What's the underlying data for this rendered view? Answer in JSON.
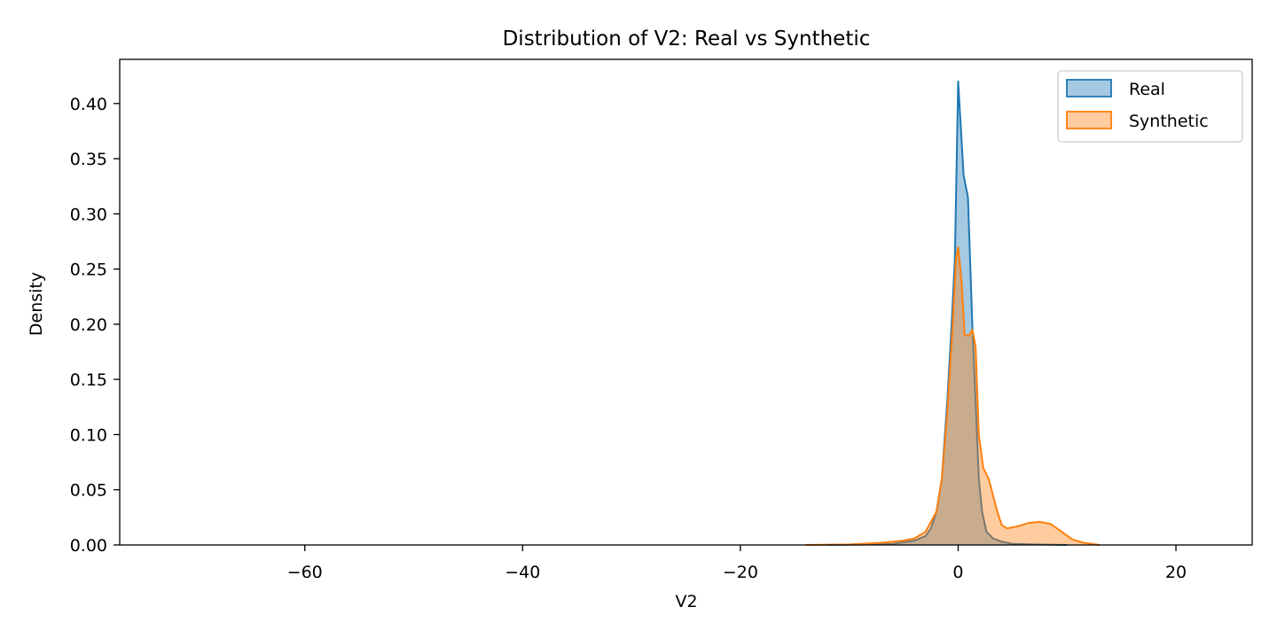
{
  "chart_data": {
    "type": "area",
    "title": "Distribution of V2: Real vs Synthetic",
    "xlabel": "V2",
    "ylabel": "Density",
    "xlim": [
      -77,
      27
    ],
    "ylim": [
      0,
      0.44
    ],
    "xticks": [
      -60,
      -40,
      -20,
      0,
      20
    ],
    "xtick_labels": [
      "−60",
      "−40",
      "−20",
      "0",
      "20"
    ],
    "yticks": [
      0.0,
      0.05,
      0.1,
      0.15,
      0.2,
      0.25,
      0.3,
      0.35,
      0.4
    ],
    "ytick_labels": [
      "0.00",
      "0.05",
      "0.10",
      "0.15",
      "0.20",
      "0.25",
      "0.30",
      "0.35",
      "0.40"
    ],
    "grid": false,
    "legend_position": "top-right",
    "series": [
      {
        "name": "Real",
        "color": "#1f77b4",
        "points": [
          [
            -12,
            0
          ],
          [
            -8,
            0.0005
          ],
          [
            -6,
            0.001
          ],
          [
            -4,
            0.004
          ],
          [
            -3,
            0.008
          ],
          [
            -2.5,
            0.015
          ],
          [
            -2,
            0.03
          ],
          [
            -1.5,
            0.06
          ],
          [
            -1,
            0.13
          ],
          [
            -0.6,
            0.2
          ],
          [
            -0.3,
            0.26
          ],
          [
            0,
            0.42
          ],
          [
            0.5,
            0.335
          ],
          [
            0.9,
            0.315
          ],
          [
            1.3,
            0.2
          ],
          [
            1.6,
            0.13
          ],
          [
            1.9,
            0.06
          ],
          [
            2.2,
            0.03
          ],
          [
            2.6,
            0.012
          ],
          [
            3.2,
            0.006
          ],
          [
            4,
            0.003
          ],
          [
            5,
            0.001
          ],
          [
            7,
            0.0005
          ],
          [
            10,
            0
          ]
        ]
      },
      {
        "name": "Synthetic",
        "color": "#ff7f0e",
        "points": [
          [
            -14,
            0
          ],
          [
            -10,
            0.0005
          ],
          [
            -7,
            0.002
          ],
          [
            -5,
            0.004
          ],
          [
            -4,
            0.006
          ],
          [
            -3,
            0.012
          ],
          [
            -2,
            0.03
          ],
          [
            -1.5,
            0.06
          ],
          [
            -1,
            0.12
          ],
          [
            -0.5,
            0.2
          ],
          [
            -0.2,
            0.26
          ],
          [
            0,
            0.27
          ],
          [
            0.3,
            0.24
          ],
          [
            0.6,
            0.19
          ],
          [
            1.0,
            0.19
          ],
          [
            1.3,
            0.195
          ],
          [
            1.6,
            0.18
          ],
          [
            1.9,
            0.1
          ],
          [
            2.3,
            0.07
          ],
          [
            2.8,
            0.06
          ],
          [
            3.2,
            0.045
          ],
          [
            3.6,
            0.03
          ],
          [
            4.0,
            0.018
          ],
          [
            4.5,
            0.015
          ],
          [
            5.5,
            0.017
          ],
          [
            6.5,
            0.02
          ],
          [
            7.5,
            0.021
          ],
          [
            8.5,
            0.019
          ],
          [
            9.5,
            0.012
          ],
          [
            10.5,
            0.005
          ],
          [
            11.5,
            0.002
          ],
          [
            13,
            0
          ]
        ]
      }
    ]
  }
}
